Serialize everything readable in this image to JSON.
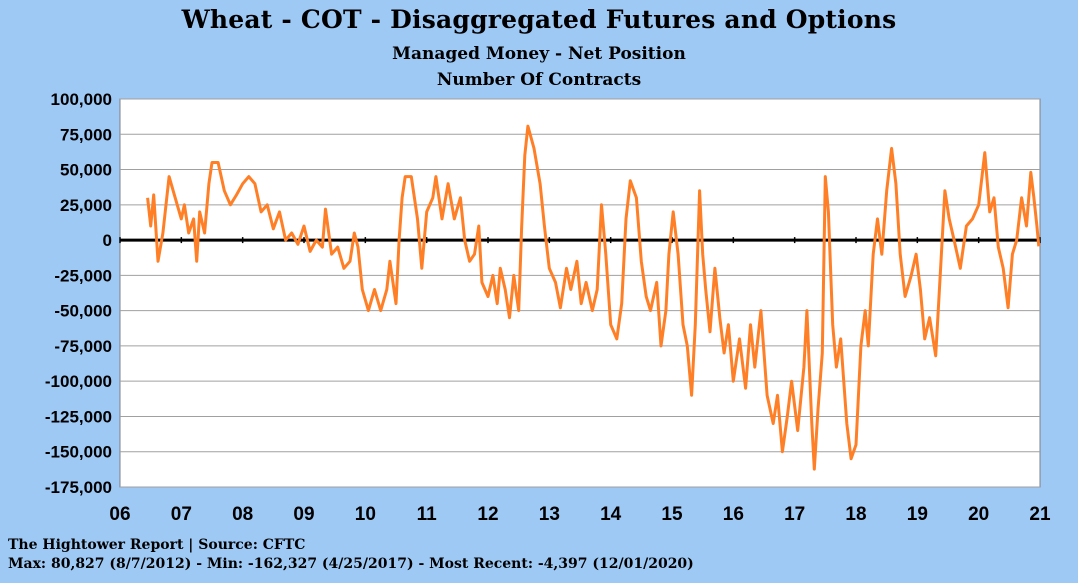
{
  "colors": {
    "background": "#9ec9f5",
    "plot_area": "#ffffff",
    "line": "#ff7f27",
    "gridline": "#a0a0a0",
    "zero_line": "#000000"
  },
  "chart_data": {
    "type": "line",
    "title": "Wheat - COT - Disaggregated  Futures and Options",
    "subtitle": [
      "Managed Money - Net Position",
      "Number Of Contracts"
    ],
    "xlabel": "",
    "ylabel": "",
    "xlim": [
      2006,
      2021
    ],
    "ylim": [
      -175000,
      100000
    ],
    "grid": true,
    "legend": "none",
    "x_tick_labels": [
      "06",
      "07",
      "08",
      "09",
      "10",
      "11",
      "12",
      "13",
      "14",
      "15",
      "16",
      "17",
      "18",
      "19",
      "20",
      "21"
    ],
    "y_tick_values": [
      100000,
      75000,
      50000,
      25000,
      0,
      -25000,
      -50000,
      -75000,
      -100000,
      -125000,
      -150000,
      -175000
    ],
    "y_tick_labels": [
      "100,000",
      "75,000",
      "50,000",
      "25,000",
      "0",
      "-25,000",
      "-50,000",
      "-75,000",
      "-100,000",
      "-125,000",
      "-150,000",
      "-175,000"
    ],
    "series": [
      {
        "values": [
          [
            2006.45,
            30000
          ],
          [
            2006.5,
            10000
          ],
          [
            2006.55,
            32000
          ],
          [
            2006.62,
            -15000
          ],
          [
            2006.7,
            5000
          ],
          [
            2006.8,
            45000
          ],
          [
            2006.9,
            30000
          ],
          [
            2007.0,
            15000
          ],
          [
            2007.05,
            25000
          ],
          [
            2007.12,
            5000
          ],
          [
            2007.2,
            15000
          ],
          [
            2007.25,
            -15000
          ],
          [
            2007.3,
            20000
          ],
          [
            2007.38,
            5000
          ],
          [
            2007.45,
            40000
          ],
          [
            2007.5,
            55000
          ],
          [
            2007.6,
            55000
          ],
          [
            2007.7,
            35000
          ],
          [
            2007.8,
            25000
          ],
          [
            2007.9,
            32000
          ],
          [
            2008.0,
            40000
          ],
          [
            2008.1,
            45000
          ],
          [
            2008.2,
            40000
          ],
          [
            2008.3,
            20000
          ],
          [
            2008.4,
            25000
          ],
          [
            2008.5,
            8000
          ],
          [
            2008.6,
            20000
          ],
          [
            2008.7,
            0
          ],
          [
            2008.8,
            5000
          ],
          [
            2008.9,
            -3000
          ],
          [
            2009.0,
            10000
          ],
          [
            2009.1,
            -8000
          ],
          [
            2009.2,
            0
          ],
          [
            2009.3,
            -5000
          ],
          [
            2009.35,
            22000
          ],
          [
            2009.45,
            -10000
          ],
          [
            2009.55,
            -5000
          ],
          [
            2009.65,
            -20000
          ],
          [
            2009.75,
            -15000
          ],
          [
            2009.82,
            5000
          ],
          [
            2009.88,
            -5000
          ],
          [
            2009.95,
            -35000
          ],
          [
            2010.05,
            -50000
          ],
          [
            2010.15,
            -35000
          ],
          [
            2010.25,
            -50000
          ],
          [
            2010.35,
            -35000
          ],
          [
            2010.4,
            -15000
          ],
          [
            2010.5,
            -45000
          ],
          [
            2010.55,
            0
          ],
          [
            2010.6,
            30000
          ],
          [
            2010.65,
            45000
          ],
          [
            2010.75,
            45000
          ],
          [
            2010.85,
            15000
          ],
          [
            2010.92,
            -20000
          ],
          [
            2011.0,
            20000
          ],
          [
            2011.1,
            30000
          ],
          [
            2011.15,
            45000
          ],
          [
            2011.25,
            15000
          ],
          [
            2011.35,
            40000
          ],
          [
            2011.45,
            15000
          ],
          [
            2011.55,
            30000
          ],
          [
            2011.62,
            0
          ],
          [
            2011.7,
            -15000
          ],
          [
            2011.78,
            -10000
          ],
          [
            2011.85,
            10000
          ],
          [
            2011.9,
            -30000
          ],
          [
            2012.0,
            -40000
          ],
          [
            2012.08,
            -25000
          ],
          [
            2012.15,
            -45000
          ],
          [
            2012.2,
            -20000
          ],
          [
            2012.28,
            -35000
          ],
          [
            2012.35,
            -55000
          ],
          [
            2012.42,
            -25000
          ],
          [
            2012.5,
            -50000
          ],
          [
            2012.55,
            10000
          ],
          [
            2012.6,
            60000
          ],
          [
            2012.65,
            80827
          ],
          [
            2012.75,
            65000
          ],
          [
            2012.85,
            40000
          ],
          [
            2012.92,
            10000
          ],
          [
            2013.0,
            -20000
          ],
          [
            2013.1,
            -30000
          ],
          [
            2013.18,
            -48000
          ],
          [
            2013.28,
            -20000
          ],
          [
            2013.35,
            -35000
          ],
          [
            2013.45,
            -15000
          ],
          [
            2013.52,
            -45000
          ],
          [
            2013.6,
            -30000
          ],
          [
            2013.7,
            -50000
          ],
          [
            2013.78,
            -35000
          ],
          [
            2013.85,
            25000
          ],
          [
            2013.92,
            -10000
          ],
          [
            2014.0,
            -60000
          ],
          [
            2014.1,
            -70000
          ],
          [
            2014.18,
            -45000
          ],
          [
            2014.25,
            15000
          ],
          [
            2014.32,
            42000
          ],
          [
            2014.42,
            30000
          ],
          [
            2014.5,
            -15000
          ],
          [
            2014.58,
            -40000
          ],
          [
            2014.65,
            -50000
          ],
          [
            2014.75,
            -30000
          ],
          [
            2014.82,
            -75000
          ],
          [
            2014.9,
            -50000
          ],
          [
            2014.95,
            -10000
          ],
          [
            2015.02,
            20000
          ],
          [
            2015.1,
            -10000
          ],
          [
            2015.18,
            -60000
          ],
          [
            2015.25,
            -75000
          ],
          [
            2015.32,
            -110000
          ],
          [
            2015.38,
            -60000
          ],
          [
            2015.45,
            35000
          ],
          [
            2015.5,
            -10000
          ],
          [
            2015.55,
            -35000
          ],
          [
            2015.62,
            -65000
          ],
          [
            2015.7,
            -20000
          ],
          [
            2015.78,
            -55000
          ],
          [
            2015.85,
            -80000
          ],
          [
            2015.92,
            -60000
          ],
          [
            2016.0,
            -100000
          ],
          [
            2016.1,
            -70000
          ],
          [
            2016.2,
            -105000
          ],
          [
            2016.28,
            -60000
          ],
          [
            2016.35,
            -90000
          ],
          [
            2016.45,
            -50000
          ],
          [
            2016.55,
            -110000
          ],
          [
            2016.65,
            -130000
          ],
          [
            2016.72,
            -110000
          ],
          [
            2016.8,
            -150000
          ],
          [
            2016.88,
            -125000
          ],
          [
            2016.95,
            -100000
          ],
          [
            2017.05,
            -135000
          ],
          [
            2017.15,
            -90000
          ],
          [
            2017.2,
            -50000
          ],
          [
            2017.28,
            -130000
          ],
          [
            2017.32,
            -162327
          ],
          [
            2017.38,
            -120000
          ],
          [
            2017.45,
            -80000
          ],
          [
            2017.5,
            45000
          ],
          [
            2017.55,
            20000
          ],
          [
            2017.62,
            -60000
          ],
          [
            2017.68,
            -90000
          ],
          [
            2017.75,
            -70000
          ],
          [
            2017.85,
            -130000
          ],
          [
            2017.92,
            -155000
          ],
          [
            2018.0,
            -145000
          ],
          [
            2018.08,
            -75000
          ],
          [
            2018.15,
            -50000
          ],
          [
            2018.2,
            -75000
          ],
          [
            2018.28,
            -10000
          ],
          [
            2018.35,
            15000
          ],
          [
            2018.42,
            -10000
          ],
          [
            2018.5,
            35000
          ],
          [
            2018.58,
            65000
          ],
          [
            2018.65,
            40000
          ],
          [
            2018.72,
            -10000
          ],
          [
            2018.8,
            -40000
          ],
          [
            2018.9,
            -25000
          ],
          [
            2018.98,
            -10000
          ],
          [
            2019.05,
            -35000
          ],
          [
            2019.12,
            -70000
          ],
          [
            2019.2,
            -55000
          ],
          [
            2019.3,
            -82000
          ],
          [
            2019.38,
            -20000
          ],
          [
            2019.45,
            35000
          ],
          [
            2019.52,
            15000
          ],
          [
            2019.6,
            0
          ],
          [
            2019.7,
            -20000
          ],
          [
            2019.8,
            10000
          ],
          [
            2019.9,
            15000
          ],
          [
            2020.0,
            25000
          ],
          [
            2020.1,
            62000
          ],
          [
            2020.18,
            20000
          ],
          [
            2020.25,
            30000
          ],
          [
            2020.32,
            -5000
          ],
          [
            2020.4,
            -20000
          ],
          [
            2020.48,
            -48000
          ],
          [
            2020.55,
            -10000
          ],
          [
            2020.62,
            0
          ],
          [
            2020.7,
            30000
          ],
          [
            2020.78,
            10000
          ],
          [
            2020.85,
            48000
          ],
          [
            2020.9,
            30000
          ],
          [
            2020.95,
            10000
          ],
          [
            2020.98,
            -4397
          ]
        ]
      }
    ]
  },
  "footer": {
    "line1": "The Hightower Report | Source: CFTC",
    "line2": "Max: 80,827 (8/7/2012)  -  Min: -162,327 (4/25/2017) - Most Recent: -4,397 (12/01/2020)"
  }
}
